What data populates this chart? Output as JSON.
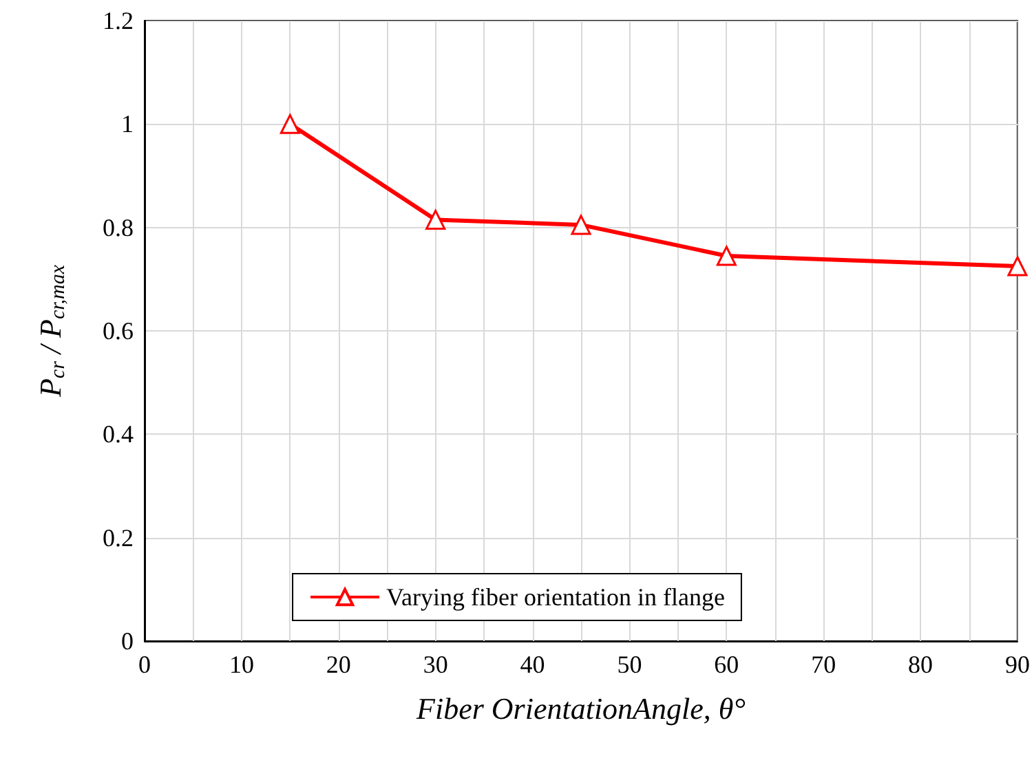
{
  "chart_data": {
    "type": "line",
    "xlabel": "Fiber OrientationAngle, θ°",
    "ylabel": "P$_{cr}$ / P$_{cr,max}$",
    "x": [
      15,
      30,
      45,
      60,
      90
    ],
    "series": [
      {
        "name": "Varying fiber orientation in flange",
        "color": "#ff0000",
        "values": [
          1.0,
          0.815,
          0.805,
          0.745,
          0.725
        ]
      }
    ],
    "xlim": [
      0,
      90
    ],
    "xticks": [
      0,
      {
        "value": 5,
        "label": null
      },
      10,
      {
        "value": 15,
        "label": null
      },
      20,
      {
        "value": 25,
        "label": null
      },
      30,
      {
        "value": 35,
        "label": null
      },
      40,
      {
        "value": 45,
        "label": null
      },
      50,
      {
        "value": 55,
        "label": null
      },
      60,
      {
        "value": 65,
        "label": null
      },
      70,
      {
        "value": 75,
        "label": null
      },
      80,
      {
        "value": 85,
        "label": null
      },
      90
    ],
    "ylim": [
      0,
      1.2
    ],
    "yticks": [
      0,
      0.2,
      0.4,
      0.6,
      0.8,
      1,
      1.2
    ],
    "grid": true,
    "legend": "bottom",
    "marker": "triangle",
    "line_style": "solid"
  }
}
